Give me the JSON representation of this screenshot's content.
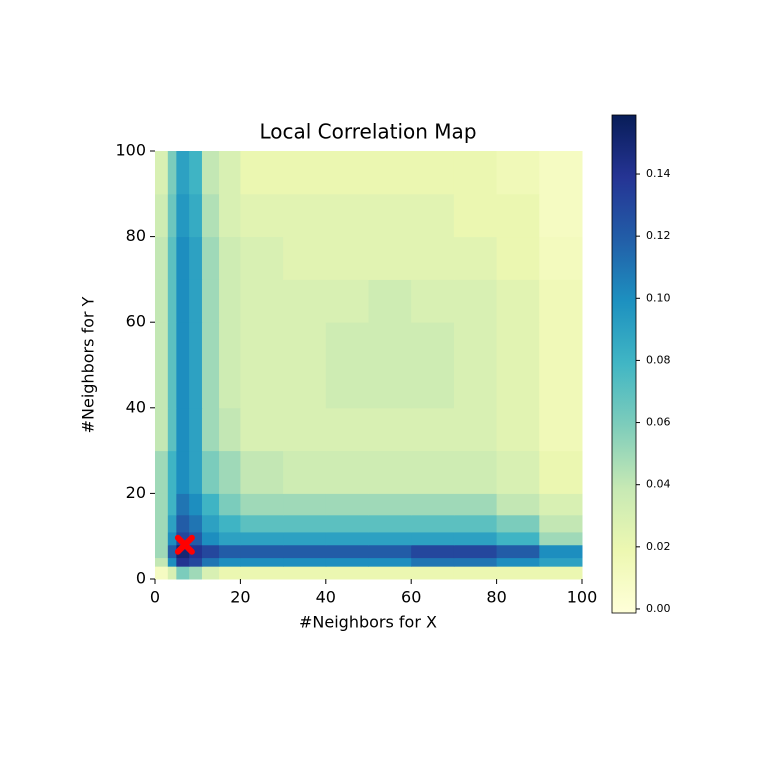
{
  "chart_data": {
    "type": "heatmap",
    "title": "Local Correlation Map",
    "x_label": "#Neighbors for X",
    "y_label": "#Neighbors for Y",
    "x_edges": [
      0,
      3,
      5,
      8,
      11,
      15,
      20,
      30,
      40,
      50,
      60,
      70,
      80,
      90,
      100
    ],
    "y_edges": [
      0,
      3,
      5,
      8,
      11,
      15,
      20,
      30,
      40,
      50,
      60,
      70,
      80,
      90,
      100
    ],
    "values": [
      [
        0.01,
        0.03,
        0.06,
        0.05,
        0.03,
        0.02,
        0.02,
        0.02,
        0.02,
        0.02,
        0.02,
        0.02,
        0.02,
        0.02
      ],
      [
        0.04,
        0.1,
        0.14,
        0.13,
        0.11,
        0.1,
        0.1,
        0.1,
        0.1,
        0.1,
        0.11,
        0.11,
        0.1,
        0.09
      ],
      [
        0.05,
        0.12,
        0.15,
        0.14,
        0.13,
        0.12,
        0.12,
        0.12,
        0.12,
        0.12,
        0.13,
        0.13,
        0.12,
        0.1
      ],
      [
        0.05,
        0.1,
        0.13,
        0.12,
        0.1,
        0.09,
        0.09,
        0.09,
        0.09,
        0.09,
        0.09,
        0.09,
        0.08,
        0.05
      ],
      [
        0.05,
        0.09,
        0.12,
        0.11,
        0.09,
        0.08,
        0.07,
        0.07,
        0.07,
        0.07,
        0.07,
        0.07,
        0.06,
        0.04
      ],
      [
        0.05,
        0.08,
        0.11,
        0.1,
        0.08,
        0.06,
        0.05,
        0.05,
        0.05,
        0.05,
        0.05,
        0.05,
        0.04,
        0.03
      ],
      [
        0.05,
        0.08,
        0.1,
        0.09,
        0.06,
        0.05,
        0.04,
        0.035,
        0.035,
        0.035,
        0.035,
        0.035,
        0.03,
        0.02
      ],
      [
        0.04,
        0.07,
        0.1,
        0.09,
        0.05,
        0.04,
        0.03,
        0.03,
        0.03,
        0.03,
        0.03,
        0.03,
        0.025,
        0.015
      ],
      [
        0.04,
        0.07,
        0.1,
        0.09,
        0.05,
        0.035,
        0.03,
        0.03,
        0.035,
        0.035,
        0.035,
        0.03,
        0.025,
        0.015
      ],
      [
        0.04,
        0.07,
        0.1,
        0.09,
        0.05,
        0.035,
        0.03,
        0.03,
        0.035,
        0.035,
        0.035,
        0.03,
        0.025,
        0.015
      ],
      [
        0.04,
        0.07,
        0.1,
        0.09,
        0.05,
        0.035,
        0.03,
        0.03,
        0.03,
        0.035,
        0.03,
        0.03,
        0.025,
        0.015
      ],
      [
        0.04,
        0.07,
        0.1,
        0.09,
        0.05,
        0.035,
        0.03,
        0.025,
        0.025,
        0.025,
        0.025,
        0.025,
        0.02,
        0.012
      ],
      [
        0.035,
        0.065,
        0.095,
        0.085,
        0.045,
        0.03,
        0.025,
        0.025,
        0.025,
        0.025,
        0.025,
        0.02,
        0.02,
        0.01
      ],
      [
        0.03,
        0.06,
        0.09,
        0.08,
        0.04,
        0.03,
        0.02,
        0.02,
        0.02,
        0.02,
        0.02,
        0.02,
        0.015,
        0.01
      ]
    ],
    "colormap": "YlGnBu",
    "clim": [
      -0.0013,
      0.159
    ],
    "xlim": [
      0,
      100
    ],
    "ylim": [
      0,
      100
    ],
    "xticks": [
      0,
      20,
      40,
      60,
      80,
      100
    ],
    "yticks": [
      0,
      20,
      40,
      60,
      80,
      100
    ],
    "colorbar_ticks": [
      {
        "value": 0,
        "label": "0.00"
      },
      {
        "value": 0.02,
        "label": "0.02"
      },
      {
        "value": 0.04,
        "label": "0.04"
      },
      {
        "value": 0.06,
        "label": "0.06"
      },
      {
        "value": 0.08,
        "label": "0.08"
      },
      {
        "value": 0.1,
        "label": "0.10"
      },
      {
        "value": 0.12,
        "label": "0.12"
      },
      {
        "value": 0.14,
        "label": "0.14"
      }
    ],
    "marker": {
      "x": 7,
      "y": 8,
      "color": "#ff0000"
    }
  }
}
